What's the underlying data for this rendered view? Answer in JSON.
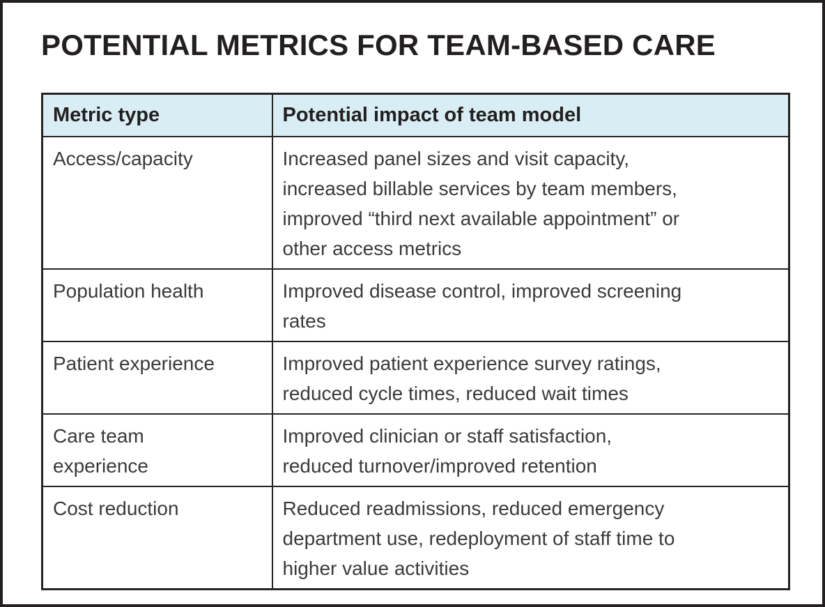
{
  "page": {
    "title": "POTENTIAL METRICS FOR TEAM-BASED CARE"
  },
  "table": {
    "headers": {
      "metric": "Metric type",
      "impact": "Potential impact of team model"
    },
    "rows": [
      {
        "metric": "Access/capacity",
        "impact": "Increased panel sizes and visit capacity, increased billable services by team members, improved “third next available appointment” or other access metrics"
      },
      {
        "metric": "Population health",
        "impact": "Improved disease control, improved screening rates"
      },
      {
        "metric": "Patient experience",
        "impact": "Improved patient experience survey ratings, reduced cycle times, reduced wait times"
      },
      {
        "metric": "Care team experience",
        "impact": "Improved clinician or staff satisfaction, reduced turnover/improved retention"
      },
      {
        "metric": "Cost reduction",
        "impact": "Reduced readmissions, reduced emergency department use, redeployment of staff time to higher value activities"
      }
    ]
  },
  "colors": {
    "header_background": "#d9edf4",
    "border": "#262324",
    "frame_border": "#231f20",
    "title_text": "#231f20",
    "body_text": "#3a3a3a"
  }
}
